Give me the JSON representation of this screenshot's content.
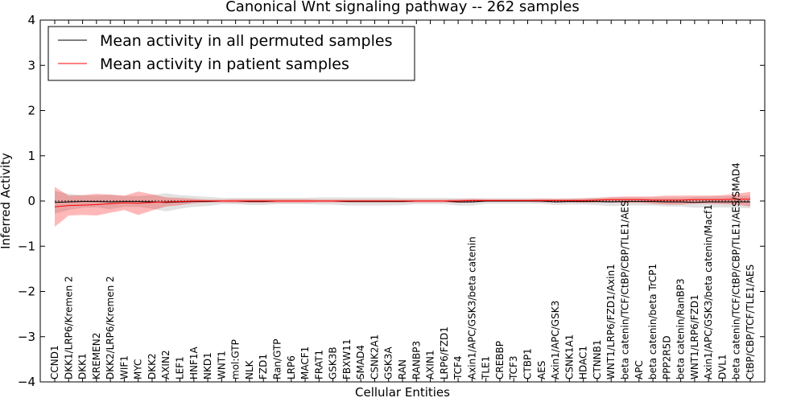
{
  "chart_data": {
    "type": "line",
    "title": "Canonical Wnt signaling pathway -- 262 samples",
    "xlabel": "Cellular Entities",
    "ylabel": "Inferred Activity",
    "ylim": [
      -4,
      4
    ],
    "yticks": [
      "4",
      "3",
      "2",
      "1",
      "0",
      "−1",
      "−2",
      "−3",
      "−4"
    ],
    "ytick_values": [
      4,
      3,
      2,
      1,
      0,
      -1,
      -2,
      -3,
      -4
    ],
    "legend": {
      "position": "top-left",
      "entries": [
        {
          "label": "Mean activity in all permuted samples",
          "color": "#000000"
        },
        {
          "label": "Mean activity in patient samples",
          "color": "#ff0000"
        }
      ]
    },
    "categories": [
      "CCND1",
      "DKK1/LRP6/Kremen 2",
      "DKK1",
      "KREMEN2",
      "DKK2/LRP6/Kremen 2",
      "WIF1",
      "MYC",
      "DKK2",
      "AXIN2",
      "LEF1",
      "HNF1A",
      "NKD1",
      "WNT1",
      "mol:GTP",
      "NLK",
      "FZD1",
      "Ran/GTP",
      "LRP6",
      "MACF1",
      "FRAT1",
      "GSK3B",
      "FBXW11",
      "SMAD4",
      "CSNK2A1",
      "GSK3A",
      "RAN",
      "RANBP3",
      "AXIN1",
      "LRP6/FZD1",
      "TCF4",
      "Axin1/APC/GSK3/beta catenin",
      "TLE1",
      "CREBBP",
      "TCF3",
      "CTBP1",
      "AES",
      "Axin1/APC/GSK3",
      "CSNK1A1",
      "HDAC1",
      "CTNNB1",
      "WNT1/LRP6/FZD1/Axin1",
      "beta catenin/TCF/CtBP/CBP/TLE1/AES",
      "APC",
      "beta catenin/beta TrCP1",
      "PPP2R5D",
      "beta catenin/RanBP3",
      "WNT1/LRP6/FZD1",
      "Axin1/APC/GSK3/beta catenin/Macf1",
      "DVL1",
      "beta catenin/TCF/CtBP/CBP/TLE1/AES/SMAD4",
      "CtBP/CBP/TCF/TLE1/AES"
    ],
    "series": [
      {
        "name": "Mean activity in all permuted samples",
        "color": "#000000",
        "values": [
          -0.03,
          -0.02,
          -0.01,
          -0.01,
          -0.02,
          -0.01,
          -0.01,
          -0.02,
          -0.03,
          -0.02,
          -0.01,
          -0.01,
          0.0,
          0.0,
          -0.01,
          -0.01,
          0.0,
          0.0,
          0.0,
          0.0,
          0.0,
          -0.01,
          -0.01,
          -0.01,
          -0.01,
          -0.01,
          0.0,
          0.0,
          0.0,
          -0.02,
          -0.02,
          0.0,
          0.0,
          0.0,
          0.0,
          0.0,
          -0.02,
          -0.01,
          -0.01,
          -0.01,
          -0.02,
          -0.01,
          -0.01,
          -0.01,
          -0.02,
          -0.02,
          -0.03,
          -0.02,
          -0.02,
          -0.02,
          -0.02
        ],
        "band": [
          0.25,
          0.18,
          0.14,
          0.13,
          0.16,
          0.12,
          0.12,
          0.15,
          0.2,
          0.15,
          0.12,
          0.1,
          0.07,
          0.07,
          0.08,
          0.08,
          0.07,
          0.07,
          0.07,
          0.08,
          0.08,
          0.09,
          0.09,
          0.09,
          0.09,
          0.08,
          0.07,
          0.07,
          0.07,
          0.08,
          0.08,
          0.06,
          0.06,
          0.06,
          0.06,
          0.06,
          0.07,
          0.07,
          0.07,
          0.08,
          0.09,
          0.09,
          0.09,
          0.09,
          0.1,
          0.1,
          0.12,
          0.12,
          0.12,
          0.13,
          0.14
        ]
      },
      {
        "name": "Mean activity in patient samples",
        "color": "#ff0000",
        "values": [
          -0.13,
          -0.1,
          -0.09,
          -0.08,
          -0.06,
          -0.04,
          -0.05,
          -0.03,
          -0.02,
          -0.01,
          0.0,
          0.0,
          0.0,
          0.0,
          0.0,
          0.0,
          0.0,
          0.0,
          0.0,
          0.0,
          0.0,
          0.0,
          0.0,
          0.0,
          0.0,
          0.0,
          0.0,
          0.0,
          0.0,
          0.0,
          0.01,
          0.01,
          0.01,
          0.01,
          0.01,
          0.01,
          0.01,
          0.01,
          0.01,
          0.02,
          0.03,
          0.03,
          0.03,
          0.02,
          0.02,
          0.02,
          0.03,
          0.03,
          0.03,
          0.04,
          0.04
        ],
        "band": [
          0.44,
          0.22,
          0.22,
          0.24,
          0.2,
          0.16,
          0.26,
          0.18,
          0.1,
          0.08,
          0.05,
          0.03,
          0.03,
          0.04,
          0.04,
          0.04,
          0.04,
          0.04,
          0.04,
          0.03,
          0.03,
          0.03,
          0.03,
          0.03,
          0.03,
          0.03,
          0.03,
          0.03,
          0.03,
          0.04,
          0.04,
          0.03,
          0.03,
          0.03,
          0.03,
          0.04,
          0.04,
          0.04,
          0.05,
          0.05,
          0.06,
          0.07,
          0.07,
          0.08,
          0.1,
          0.1,
          0.09,
          0.09,
          0.1,
          0.12,
          0.16
        ]
      }
    ]
  }
}
